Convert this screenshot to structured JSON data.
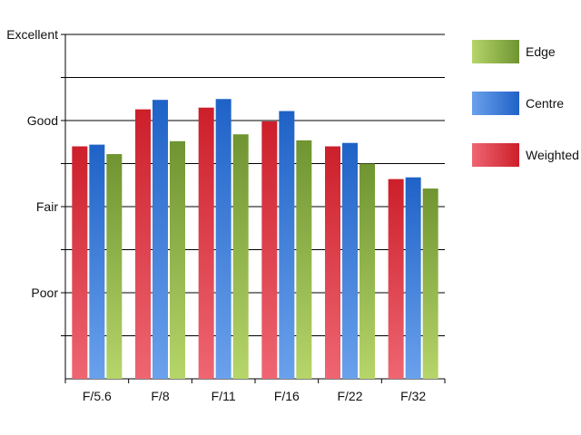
{
  "chart_data": {
    "type": "bar",
    "categories": [
      "F/5.6",
      "F/8",
      "F/11",
      "F/16",
      "F/22",
      "F/32"
    ],
    "y_ticks": [
      {
        "value": 4,
        "label": "Excellent"
      },
      {
        "value": 3,
        "label": "Good"
      },
      {
        "value": 2,
        "label": "Fair"
      },
      {
        "value": 1,
        "label": "Poor"
      }
    ],
    "ylim": [
      0,
      4
    ],
    "grid": true,
    "legend_position": "right",
    "series": [
      {
        "name": "Weighted",
        "key": "weighted",
        "color": "#cc1f2a",
        "light": "#ee6672",
        "values": [
          2.7,
          3.13,
          3.15,
          2.99,
          2.7,
          2.32
        ]
      },
      {
        "name": "Centre",
        "key": "centre",
        "color": "#1f62c7",
        "light": "#6aa1ec",
        "values": [
          2.72,
          3.24,
          3.25,
          3.11,
          2.74,
          2.34
        ]
      },
      {
        "name": "Edge",
        "key": "edge",
        "color": "#6f9431",
        "light": "#b6d56a",
        "values": [
          2.61,
          2.76,
          2.84,
          2.77,
          2.5,
          2.21
        ]
      }
    ],
    "legend_order": [
      "Edge",
      "Centre",
      "Weighted"
    ],
    "title": "",
    "xlabel": "",
    "ylabel": ""
  }
}
